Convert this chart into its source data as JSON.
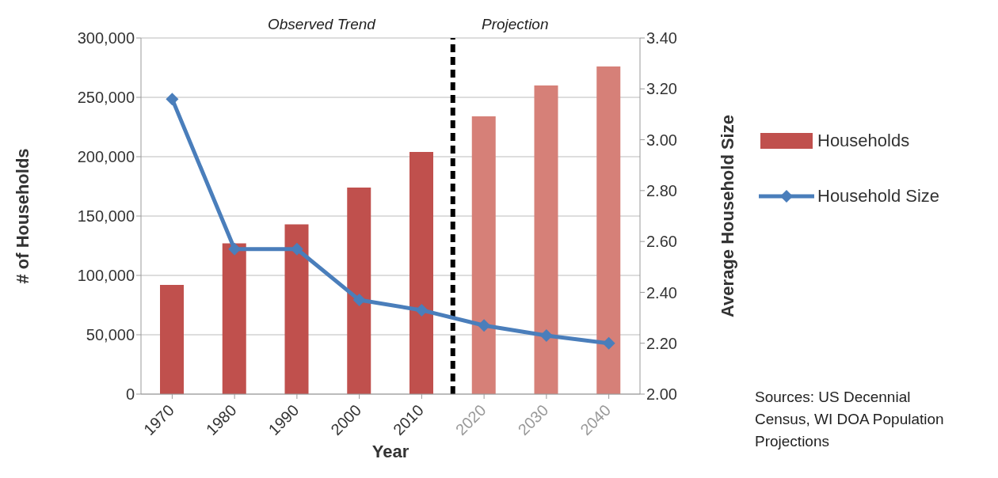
{
  "chart_data": {
    "type": "bar",
    "xlabel": "Year",
    "ylabel": "# of Households",
    "y2label": "Average Household Size",
    "x": [
      1970,
      1980,
      1990,
      2000,
      2010,
      2020,
      2030,
      2040
    ],
    "xlim": [
      1965,
      2045
    ],
    "xticks": [
      1970,
      1980,
      1990,
      2000,
      2010,
      2020,
      2030,
      2040
    ],
    "series": [
      {
        "name": "Households",
        "color": "#c0504d",
        "colors": [
          "#c0504d",
          "#c0504d",
          "#c0504d",
          "#c0504d",
          "#c0504d",
          "#d68078",
          "#d68078",
          "#d68078"
        ],
        "values": [
          92000,
          127000,
          143000,
          174000,
          204000,
          234000,
          260000,
          276000
        ]
      },
      {
        "name": "Household Size",
        "type": "line",
        "axis": "y2",
        "color": "#4a7ebb",
        "values": [
          3.16,
          2.57,
          2.57,
          2.37,
          2.33,
          2.27,
          2.23,
          2.2
        ]
      }
    ],
    "ylim": [
      0,
      300000
    ],
    "yticks": [
      {
        "value": 0,
        "label": "0"
      },
      {
        "value": 50000,
        "label": "50,000"
      },
      {
        "value": 100000,
        "label": "100,000"
      },
      {
        "value": 150000,
        "label": "150,000"
      },
      {
        "value": 200000,
        "label": "200,000"
      },
      {
        "value": 250000,
        "label": "250,000"
      },
      {
        "value": 300000,
        "label": "300,000"
      }
    ],
    "y2lim": [
      2.0,
      3.4
    ],
    "y2ticks": [
      {
        "value": 2.0,
        "label": "2.00"
      },
      {
        "value": 2.2,
        "label": "2.20"
      },
      {
        "value": 2.4,
        "label": "2.40"
      },
      {
        "value": 2.6,
        "label": "2.60"
      },
      {
        "value": 2.8,
        "label": "2.80"
      },
      {
        "value": 3.0,
        "label": "3.00"
      },
      {
        "value": 3.2,
        "label": "3.20"
      },
      {
        "value": 3.4,
        "label": "3.40"
      }
    ],
    "ref_lines": [
      {
        "axis": "x",
        "value": 2015,
        "color": "#000000",
        "line_style": "dashed"
      }
    ],
    "annotations": [
      "Observed Trend",
      "Projection",
      "Sources: US Decennial Census, WI DOA Population Projections"
    ],
    "grid": "y",
    "legend": "right",
    "marker": "diamond",
    "line_style": "solid"
  }
}
